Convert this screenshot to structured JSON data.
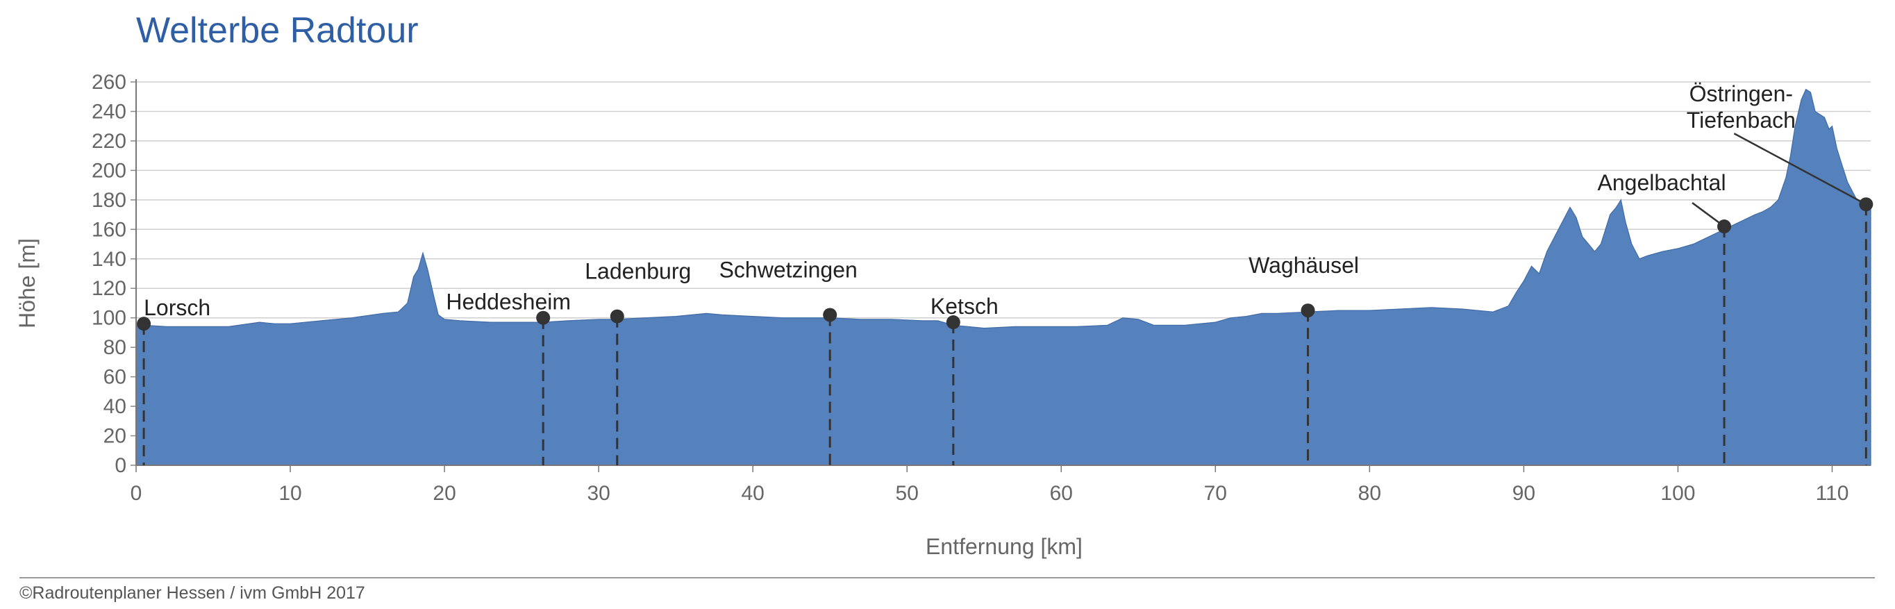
{
  "chart_data": {
    "type": "area",
    "title": "Welterbe Radtour",
    "xlabel": "Entfernung [km]",
    "ylabel": "Höhe [m]",
    "xlim": [
      0,
      112.5
    ],
    "ylim": [
      0,
      260
    ],
    "x_ticks": [
      0,
      10,
      20,
      30,
      40,
      50,
      60,
      70,
      80,
      90,
      100,
      110
    ],
    "y_ticks": [
      0,
      20,
      40,
      60,
      80,
      100,
      120,
      140,
      160,
      180,
      200,
      220,
      240,
      260
    ],
    "grid": "horizontal",
    "fill_color": "#5581bd",
    "profile": {
      "x": [
        0,
        0.5,
        2,
        4,
        6,
        8,
        9,
        10,
        12,
        14,
        16,
        17,
        17.6,
        18,
        18.3,
        18.6,
        18.9,
        19.3,
        19.6,
        20,
        21,
        23,
        25,
        26.4,
        28,
        30,
        31.2,
        33,
        35,
        37,
        38,
        40,
        42,
        44,
        45,
        47,
        49,
        51,
        52,
        53,
        55,
        57,
        59,
        61,
        63,
        64,
        65,
        66,
        68,
        70,
        71,
        72,
        73,
        74,
        76,
        78,
        80,
        82,
        84,
        86,
        88,
        89,
        89.5,
        90,
        90.5,
        91,
        91.5,
        92,
        92.5,
        93,
        93.4,
        93.8,
        94.2,
        94.6,
        95,
        95.3,
        95.6,
        96,
        96.3,
        96.6,
        97,
        97.5,
        98,
        99,
        100,
        101,
        102,
        103,
        104,
        105,
        105.5,
        106,
        106.5,
        107,
        107.3,
        107.6,
        108,
        108.3,
        108.6,
        108.9,
        109.2,
        109.5,
        109.8,
        110,
        110.3,
        110.6,
        111,
        111.3,
        111.6,
        112,
        112.2,
        112.5
      ],
      "y": [
        95,
        95,
        94,
        94,
        94,
        97,
        96,
        96,
        98,
        100,
        103,
        104,
        110,
        128,
        133,
        144,
        133,
        115,
        102,
        99,
        98,
        97,
        97,
        97,
        98,
        99,
        99,
        100,
        101,
        103,
        102,
        101,
        100,
        100,
        100,
        99,
        99,
        98,
        98,
        95,
        93,
        94,
        94,
        94,
        95,
        100,
        99,
        95,
        95,
        97,
        100,
        101,
        103,
        103,
        104,
        105,
        105,
        106,
        107,
        106,
        104,
        108,
        117,
        125,
        135,
        130,
        145,
        155,
        165,
        175,
        168,
        155,
        150,
        145,
        150,
        160,
        170,
        175,
        180,
        165,
        150,
        140,
        142,
        145,
        147,
        150,
        155,
        160,
        165,
        170,
        172,
        175,
        180,
        195,
        210,
        230,
        248,
        255,
        253,
        240,
        238,
        236,
        228,
        230,
        215,
        205,
        192,
        186,
        180,
        178,
        178,
        178
      ]
    },
    "places": [
      {
        "name": "Lorsch",
        "km": 0.5,
        "elev": 96
      },
      {
        "name": "Heddesheim",
        "km": 26.4,
        "elev": 100
      },
      {
        "name": "Ladenburg",
        "km": 31.2,
        "elev": 101
      },
      {
        "name": "Schwetzingen",
        "km": 45.0,
        "elev": 102
      },
      {
        "name": "Ketsch",
        "km": 53.0,
        "elev": 97
      },
      {
        "name": "Waghäusel",
        "km": 76.0,
        "elev": 105
      },
      {
        "name": "Angelbachtal",
        "km": 103.0,
        "elev": 162
      },
      {
        "name": "Östringen-\nTiefenbach",
        "km": 112.2,
        "elev": 177
      }
    ]
  },
  "credit": "©Radroutenplaner Hessen / ivm GmbH 2017"
}
